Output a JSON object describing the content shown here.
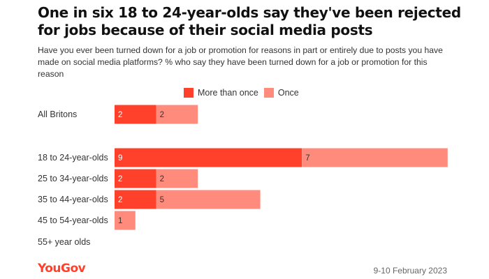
{
  "title": "One in six 18 to 24-year-olds say they've been rejected for jobs because of their social media posts",
  "subtitle": "Have you ever been turned down for a job or promotion for reasons in part or entirely due to posts you have made on social media platforms? % who say they have been turned down for a job or promotion for this reason",
  "footer": {
    "brand": "YouGov",
    "date": "9-10 February 2023"
  },
  "colors": {
    "more_than_once": "#ff412c",
    "once": "#ff8b7c",
    "brand": "#ff412c"
  },
  "chart_data": {
    "type": "bar",
    "orientation": "horizontal",
    "stacked": true,
    "categories": [
      "All Britons",
      "18 to 24-year-olds",
      "25 to 34-year-olds",
      "35 to 44-year-olds",
      "45 to 54-year-olds",
      "55+ year olds"
    ],
    "series": [
      {
        "name": "More than once",
        "values": [
          2,
          9,
          2,
          2,
          0,
          0
        ]
      },
      {
        "name": "Once",
        "values": [
          2,
          7,
          2,
          5,
          1,
          0
        ]
      }
    ],
    "legend_position": "top",
    "grid": false
  }
}
